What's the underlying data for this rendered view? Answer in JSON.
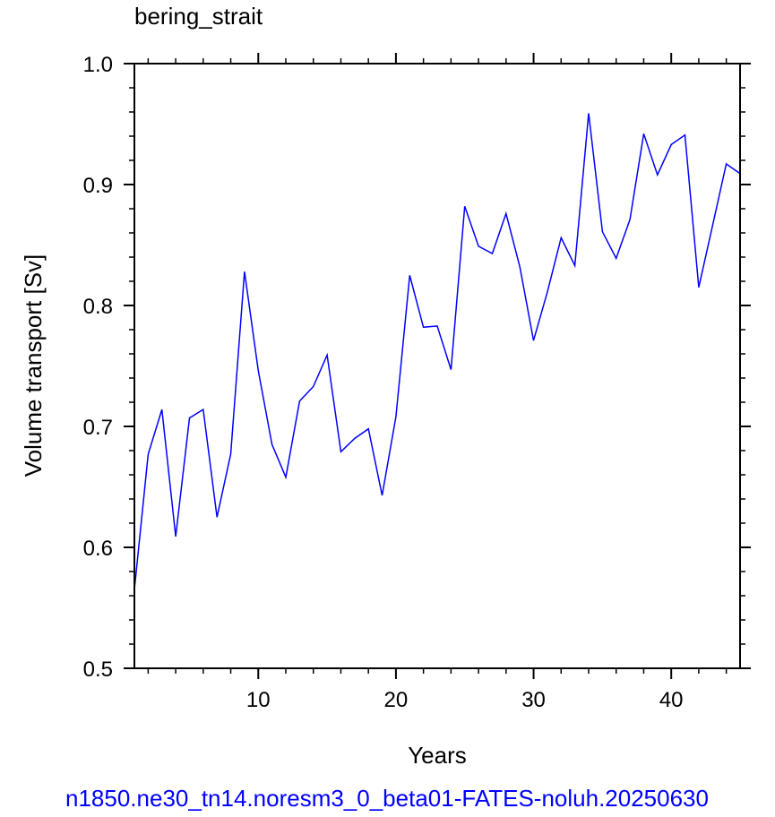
{
  "chart_data": {
    "type": "line",
    "title": "bering_strait",
    "xlabel": "Years",
    "ylabel": "Volume transport [Sv]",
    "caption": "n1850.ne30_tn14.noresm3_0_beta01-FATES-noluh.20250630",
    "xlim": [
      1,
      45
    ],
    "ylim": [
      0.5,
      1.0
    ],
    "x_ticks": [
      10,
      20,
      30,
      40
    ],
    "y_ticks": [
      0.5,
      0.6,
      0.7,
      0.8,
      0.9,
      1.0
    ],
    "y_tick_labels": [
      "0.5",
      "0.6",
      "0.7",
      "0.8",
      "0.9",
      "1.0"
    ],
    "series": [
      {
        "color": "#0000ff",
        "x": [
          1,
          2,
          3,
          4,
          5,
          6,
          7,
          8,
          9,
          10,
          11,
          12,
          13,
          14,
          15,
          16,
          17,
          18,
          19,
          20,
          21,
          22,
          23,
          24,
          25,
          26,
          27,
          28,
          29,
          30,
          31,
          32,
          33,
          34,
          35,
          36,
          37,
          38,
          39,
          40,
          41,
          42,
          43,
          44,
          45
        ],
        "values": [
          0.565,
          0.677,
          0.714,
          0.609,
          0.707,
          0.714,
          0.625,
          0.677,
          0.828,
          0.746,
          0.685,
          0.658,
          0.721,
          0.733,
          0.759,
          0.679,
          0.69,
          0.698,
          0.643,
          0.708,
          0.825,
          0.782,
          0.783,
          0.747,
          0.882,
          0.849,
          0.843,
          0.876,
          0.832,
          0.771,
          0.811,
          0.856,
          0.833,
          0.959,
          0.861,
          0.839,
          0.871,
          0.942,
          0.908,
          0.933,
          0.941,
          0.815,
          0.866,
          0.917,
          0.909
        ]
      }
    ]
  }
}
